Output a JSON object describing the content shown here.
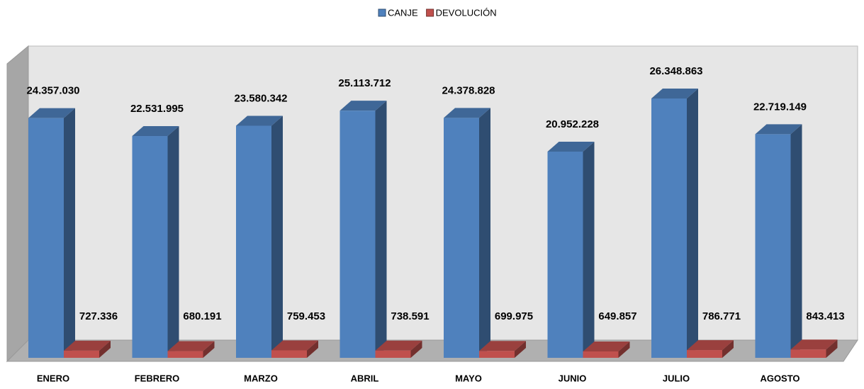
{
  "chart_data": {
    "type": "bar3d",
    "categories": [
      "ENERO",
      "FEBRERO",
      "MARZO",
      "ABRIL",
      "MAYO",
      "JUNIO",
      "JULIO",
      "AGOSTO"
    ],
    "series": [
      {
        "name": "CANJE",
        "color": "#4f81bd",
        "values": [
          24357030,
          22531995,
          23580342,
          25113712,
          24378828,
          20952228,
          26348863,
          22719149
        ],
        "value_labels": [
          "24.357.030",
          "22.531.995",
          "23.580.342",
          "25.113.712",
          "24.378.828",
          "20.952.228",
          "26.348.863",
          "22.719.149"
        ]
      },
      {
        "name": "DEVOLUCIÓN",
        "color": "#c0504d",
        "values": [
          727336,
          680191,
          759453,
          738591,
          699975,
          649857,
          786771,
          843413
        ],
        "value_labels": [
          "727.336",
          "680.191",
          "759.453",
          "738.591",
          "699.975",
          "649.857",
          "786.771",
          "843.413"
        ]
      }
    ]
  }
}
